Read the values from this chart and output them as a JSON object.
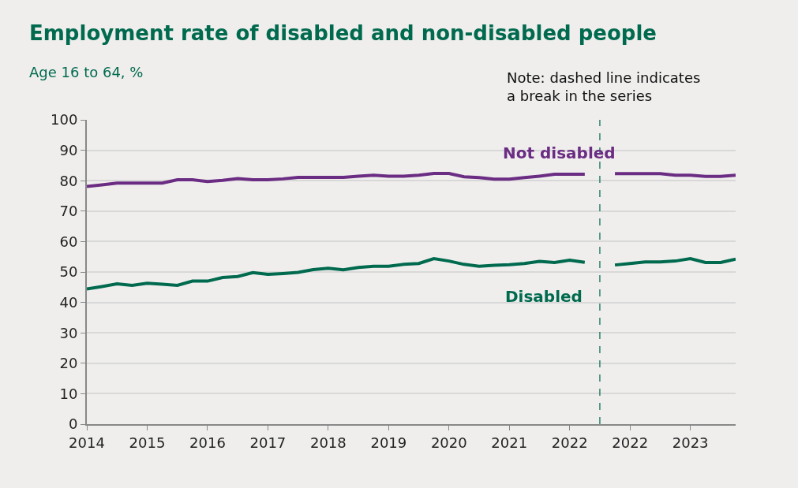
{
  "chart_data": {
    "type": "line",
    "title": "Employment rate of disabled and non-disabled people",
    "subtitle": "Age 16 to 64, %",
    "categories": [
      "2014",
      null,
      null,
      null,
      "2015",
      null,
      null,
      null,
      "2016",
      null,
      null,
      null,
      "2017",
      null,
      null,
      null,
      "2018",
      null,
      null,
      null,
      "2019",
      null,
      null,
      null,
      "2020",
      null,
      null,
      null,
      "2021",
      null,
      null,
      null,
      "2022",
      null,
      null,
      null,
      "2022",
      null,
      null,
      null,
      "2023",
      null,
      null,
      null
    ],
    "series": [
      {
        "name": "Not disabled",
        "color": "#6b2c83",
        "values": [
          78.1,
          78.6,
          79.2,
          79.2,
          79.2,
          79.2,
          80.3,
          80.3,
          79.7,
          80.1,
          80.7,
          80.3,
          80.3,
          80.6,
          81.1,
          81.1,
          81.1,
          81.1,
          81.5,
          81.8,
          81.5,
          81.5,
          81.8,
          82.4,
          82.4,
          81.3,
          81.0,
          80.5,
          80.5,
          81.0,
          81.5,
          82.1,
          82.1,
          82.1,
          null,
          82.3,
          82.3,
          82.3,
          82.3,
          81.8,
          81.8,
          81.4,
          81.4,
          81.8
        ]
      },
      {
        "name": "Disabled",
        "color": "#006a4e",
        "values": [
          44.4,
          45.2,
          46.1,
          45.6,
          46.3,
          46.0,
          45.6,
          47.0,
          47.0,
          48.2,
          48.5,
          49.8,
          49.2,
          49.5,
          49.9,
          50.8,
          51.2,
          50.7,
          51.5,
          51.9,
          51.9,
          52.5,
          52.8,
          54.4,
          53.6,
          52.5,
          51.9,
          52.2,
          52.4,
          52.8,
          53.5,
          53.1,
          53.9,
          53.2,
          null,
          52.3,
          52.8,
          53.3,
          53.3,
          53.6,
          54.4,
          53.1,
          53.1,
          54.2
        ]
      }
    ],
    "ylim": [
      0,
      100
    ],
    "yticks": [
      0,
      10,
      20,
      30,
      40,
      50,
      60,
      70,
      80,
      90,
      100
    ],
    "grid": "y",
    "legend": false,
    "marker": "none",
    "line_style": "solid",
    "annotations": [
      "Note: dashed line indicates\na break in the series"
    ]
  }
}
